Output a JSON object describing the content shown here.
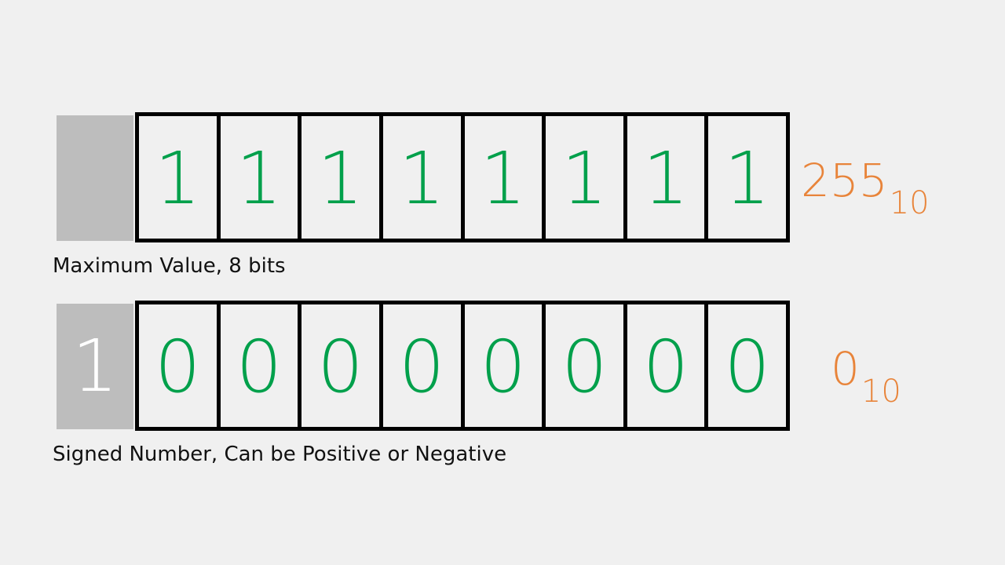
{
  "colors": {
    "background": "#f0f0f0",
    "bit_digit": "#00a04b",
    "decimal_value": "#e8843a",
    "sign_block": "#bdbdbd",
    "sign_digit": "#ffffff",
    "border": "#000000"
  },
  "rows": [
    {
      "sign_bit": "",
      "bits": [
        "1",
        "1",
        "1",
        "1",
        "1",
        "1",
        "1",
        "1"
      ],
      "decimal_value": "255",
      "decimal_base": "10",
      "caption": "Maximum Value, 8 bits"
    },
    {
      "sign_bit": "1",
      "bits": [
        "0",
        "0",
        "0",
        "0",
        "0",
        "0",
        "0",
        "0"
      ],
      "decimal_value": "0",
      "decimal_base": "10",
      "caption": "Signed Number, Can be Positive or Negative"
    }
  ]
}
